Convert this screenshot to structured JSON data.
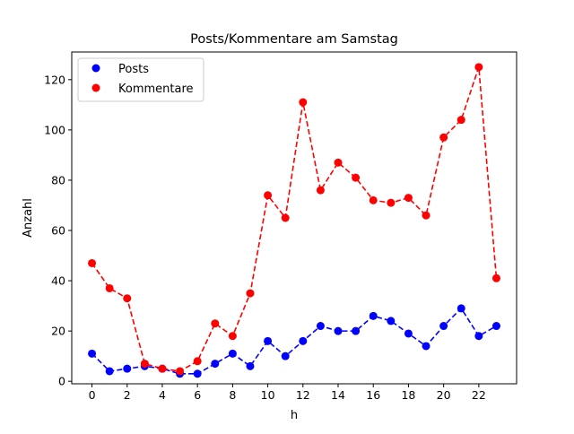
{
  "chart_data": {
    "type": "line",
    "title": "Posts/Kommentare am Samstag",
    "xlabel": "h",
    "ylabel": "Anzahl",
    "x": [
      0,
      1,
      2,
      3,
      4,
      5,
      6,
      7,
      8,
      9,
      10,
      11,
      12,
      13,
      14,
      15,
      16,
      17,
      18,
      19,
      20,
      21,
      22,
      23
    ],
    "xlim": [
      -1.15,
      24.15
    ],
    "ylim": [
      -1,
      131
    ],
    "xticks": [
      0,
      2,
      4,
      6,
      8,
      10,
      12,
      14,
      16,
      18,
      20,
      22
    ],
    "yticks": [
      0,
      20,
      40,
      60,
      80,
      100,
      120
    ],
    "grid": false,
    "legend_position": "top-left",
    "series": [
      {
        "name": "Posts",
        "color": "#0000ff",
        "values": [
          11,
          4,
          5,
          6,
          5,
          3,
          3,
          7,
          11,
          6,
          16,
          10,
          16,
          22,
          20,
          20,
          26,
          24,
          19,
          14,
          22,
          29,
          18,
          22
        ]
      },
      {
        "name": "Kommentare",
        "color": "#ff0000",
        "values": [
          47,
          37,
          33,
          7,
          5,
          4,
          8,
          23,
          18,
          35,
          74,
          65,
          111,
          76,
          87,
          81,
          72,
          71,
          73,
          66,
          97,
          104,
          125,
          41
        ]
      }
    ]
  }
}
